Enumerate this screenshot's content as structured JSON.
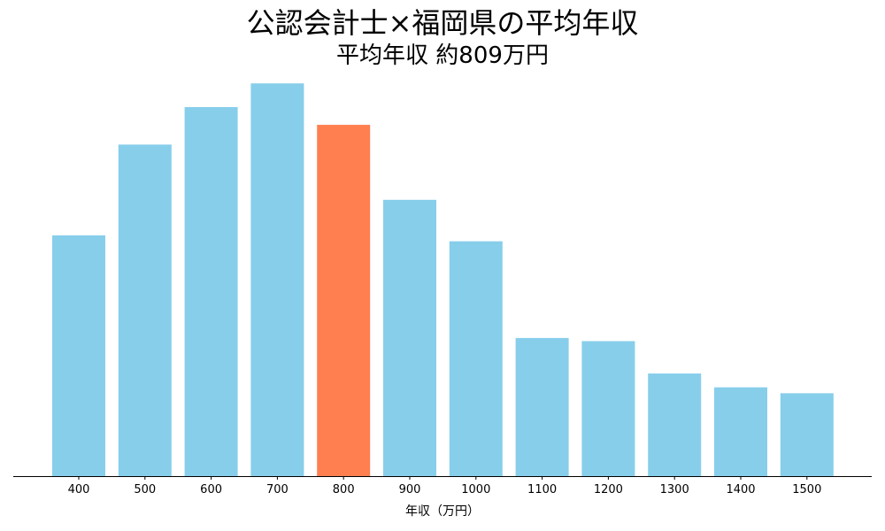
{
  "chart_data": {
    "type": "bar",
    "title": "公認会計士×福岡県の平均年収",
    "subtitle": "平均年収 約809万円",
    "xlabel": "年収（万円）",
    "ylabel": "",
    "categories": [
      "400",
      "500",
      "600",
      "700",
      "800",
      "900",
      "1000",
      "1100",
      "1200",
      "1300",
      "1400",
      "1500"
    ],
    "values": [
      6.1,
      8.4,
      9.35,
      9.95,
      8.9,
      7.0,
      5.95,
      3.5,
      3.42,
      2.6,
      2.25,
      2.1
    ],
    "ylim": [
      0,
      10
    ],
    "highlight_category": "800",
    "grid": false,
    "legend": "none",
    "colors": {
      "bar": "#87CEEB",
      "highlight": "#FF7F50",
      "axis": "#000000"
    }
  }
}
